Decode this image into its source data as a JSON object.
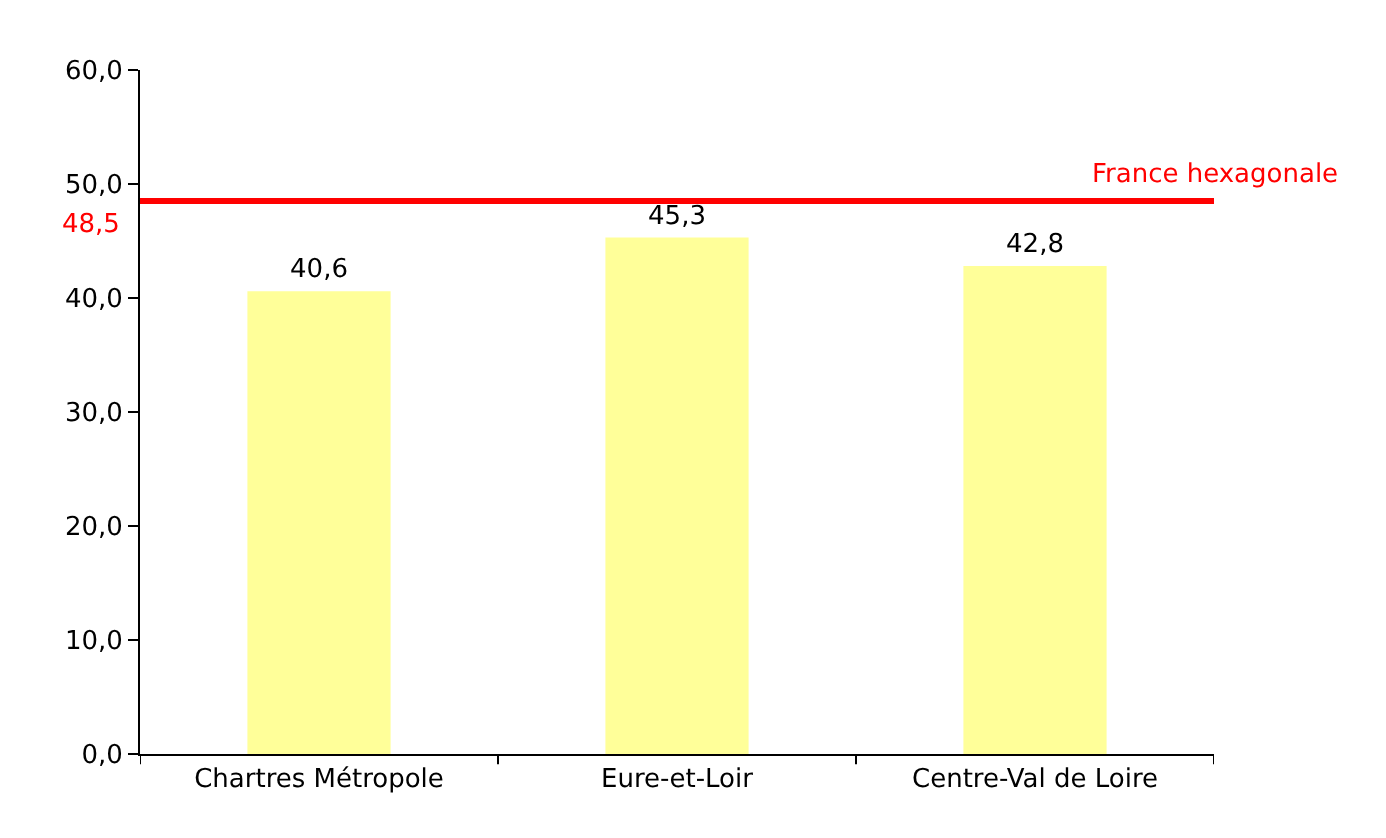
{
  "chart_data": {
    "type": "bar",
    "categories": [
      "Chartres Métropole",
      "Eure-et-Loir",
      "Centre-Val de Loire"
    ],
    "values": [
      40.6,
      45.3,
      42.8
    ],
    "value_labels": [
      "40,6",
      "45,3",
      "42,8"
    ],
    "color": "#ffff99",
    "ylim": [
      0,
      60
    ],
    "yticks": [
      {
        "value": 0,
        "label": "0,0"
      },
      {
        "value": 10,
        "label": "10,0"
      },
      {
        "value": 20,
        "label": "20,0"
      },
      {
        "value": 30,
        "label": "30,0"
      },
      {
        "value": 40,
        "label": "40,0"
      },
      {
        "value": 50,
        "label": "50,0"
      },
      {
        "value": 60,
        "label": "60,0"
      }
    ],
    "ref_lines": [
      {
        "axis": "y",
        "value": 48.5,
        "label": "France hexagonale",
        "color": "#ff0000"
      }
    ],
    "annotations": [
      "48,5"
    ],
    "legend": false
  }
}
